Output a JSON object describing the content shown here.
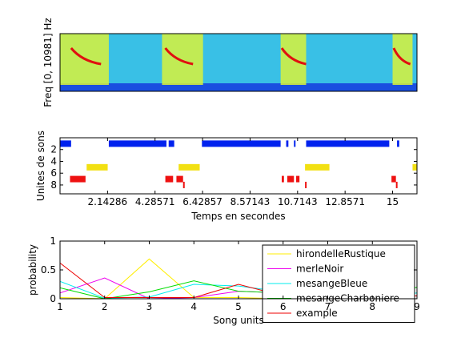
{
  "chart_data": [
    {
      "type": "heatmap",
      "title": "",
      "xlabel": "",
      "ylabel": "Freq [0, 10981] Hz",
      "xlim": [
        0,
        16.1
      ],
      "colormap": "jet",
      "colors": {
        "low": "#1a4fe0",
        "mid": "#39c0e6",
        "high": "#d9f23a",
        "peak": "#e01010"
      },
      "song_segments": [
        {
          "start": 0.0,
          "end": 2.2,
          "peak_start": 0.5,
          "peak_end": 1.85
        },
        {
          "start": 4.6,
          "end": 6.45,
          "peak_start": 4.75,
          "peak_end": 6.0
        },
        {
          "start": 9.95,
          "end": 11.1,
          "peak_start": 10.0,
          "peak_end": 11.1
        },
        {
          "start": 15.0,
          "end": 15.9,
          "peak_start": 15.05,
          "peak_end": 15.8
        }
      ]
    },
    {
      "type": "scatter",
      "title": "",
      "xlabel": "Temps en secondes",
      "ylabel": "Unites de sons",
      "xlim": [
        0,
        16.1
      ],
      "ylim": [
        9.5,
        0
      ],
      "yticks": [
        2,
        4,
        6,
        8
      ],
      "xticks": [
        2.14286,
        4.28571,
        6.42857,
        8.57143,
        10.7143,
        12.8571,
        15
      ],
      "xtick_labels": [
        "2.14286",
        "4.28571",
        "6.42857",
        "8.57143",
        "10.7143",
        "12.8571",
        "15"
      ],
      "series": [
        {
          "color": "#0022ee",
          "unit": 1,
          "segments": [
            [
              0.0,
              0.5
            ],
            [
              2.2,
              4.8
            ],
            [
              4.9,
              5.15
            ],
            [
              6.4,
              9.95
            ],
            [
              10.2,
              10.3
            ],
            [
              10.55,
              10.62
            ],
            [
              11.1,
              14.85
            ],
            [
              15.2,
              15.3
            ]
          ]
        },
        {
          "color": "#f2e012",
          "unit": 5,
          "segments": [
            [
              1.2,
              2.15
            ],
            [
              5.35,
              6.3
            ],
            [
              11.05,
              12.15
            ],
            [
              15.9,
              16.1
            ]
          ]
        },
        {
          "color": "#ee1111",
          "unit": 7,
          "segments": [
            [
              0.45,
              1.15
            ],
            [
              4.75,
              5.1
            ],
            [
              5.25,
              5.55
            ],
            [
              10.0,
              10.1
            ],
            [
              10.25,
              10.55
            ],
            [
              10.65,
              10.8
            ],
            [
              14.95,
              15.15
            ]
          ]
        },
        {
          "color": "#ee1111",
          "unit": 8,
          "segments": [
            [
              5.55,
              5.6
            ],
            [
              11.05,
              11.1
            ],
            [
              15.15,
              15.2
            ]
          ]
        }
      ]
    },
    {
      "type": "line",
      "title": "",
      "xlabel": "Song units",
      "ylabel": "probability",
      "xlim": [
        1,
        9
      ],
      "ylim": [
        0,
        1
      ],
      "xticks": [
        1,
        2,
        3,
        4,
        5,
        6,
        7,
        8,
        9
      ],
      "yticks": [
        0,
        0.5,
        1
      ],
      "ytick_labels": [
        "0",
        "0.5",
        "1"
      ],
      "legend_position": "right",
      "series": [
        {
          "name": "hirondelleRustique",
          "color": "#ffee00",
          "values": [
            0.02,
            0.0,
            0.69,
            0.02,
            0.02,
            0.0,
            0.0,
            0.0,
            0.05
          ]
        },
        {
          "name": "merleNoir",
          "color": "#ee00ee",
          "values": [
            0.1,
            0.36,
            0.0,
            0.02,
            0.13,
            0.1,
            0.0,
            0.0,
            0.05
          ]
        },
        {
          "name": "mesangeBleue",
          "color": "#00eeee",
          "values": [
            0.3,
            0.01,
            0.03,
            0.25,
            0.22,
            0.12,
            0.0,
            0.0,
            0.1
          ]
        },
        {
          "name": "mesangeCharboniere",
          "color": "#00dd00",
          "values": [
            0.19,
            0.0,
            0.12,
            0.31,
            0.13,
            0.1,
            0.0,
            0.0,
            0.2
          ]
        },
        {
          "name": "example",
          "color": "#ee0000",
          "values": [
            0.62,
            0.02,
            0.02,
            0.02,
            0.25,
            0.05,
            0.0,
            0.0,
            0.05
          ]
        }
      ]
    }
  ]
}
